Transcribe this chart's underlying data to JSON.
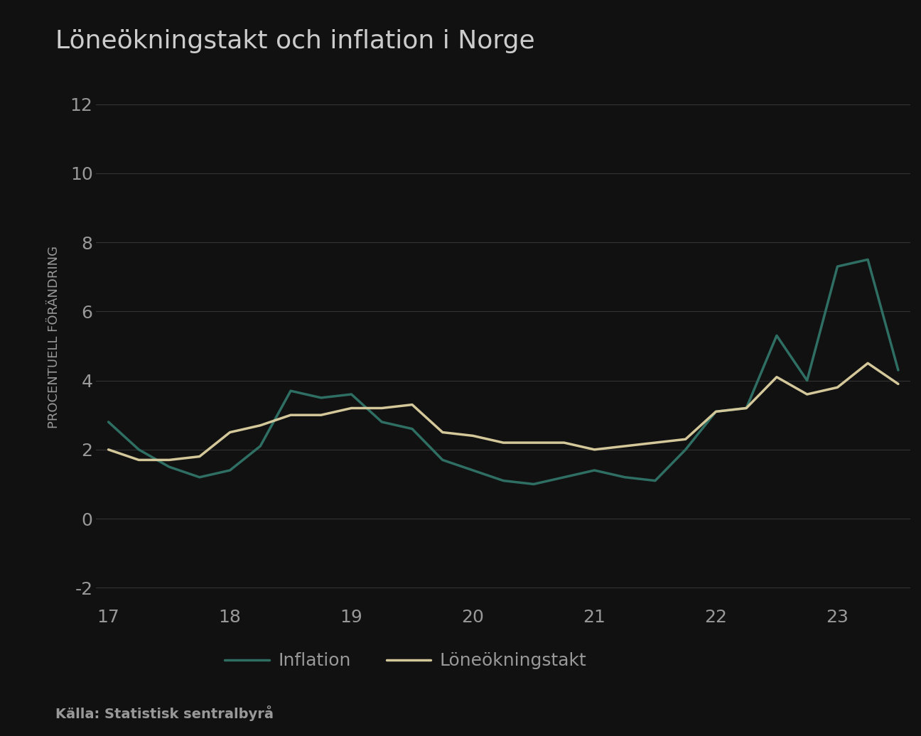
{
  "title": "Löneökningstakt och inflation i Norge",
  "ylabel": "PROCENTUELL FÖRÄNDRING",
  "source": "Källa: Statistisk sentralbyrå",
  "background_color": "#111111",
  "text_color": "#999999",
  "title_color": "#cccccc",
  "grid_color": "#333333",
  "x_labels": [
    "17",
    "18",
    "19",
    "20",
    "21",
    "22",
    "23"
  ],
  "x_ticks": [
    0,
    2,
    4,
    6,
    8,
    10,
    12
  ],
  "ylim": [
    -2.5,
    13
  ],
  "yticks": [
    -2,
    0,
    2,
    4,
    6,
    8,
    10,
    12
  ],
  "xlim": [
    -0.2,
    13.2
  ],
  "inflation_color": "#2e6e63",
  "loneokningstakt_color": "#d4c89a",
  "line_width": 2.5,
  "inflation_x": [
    0,
    0.5,
    1,
    1.5,
    2,
    2.5,
    3,
    3.5,
    4,
    4.5,
    5,
    5.5,
    6,
    6.5,
    7,
    7.5,
    8,
    8.5,
    9,
    9.5,
    10,
    10.5,
    11,
    11.5,
    12,
    12.5,
    13
  ],
  "inflation_y": [
    2.8,
    2.0,
    1.5,
    1.2,
    1.4,
    2.1,
    3.7,
    3.5,
    3.6,
    2.8,
    2.6,
    1.7,
    1.4,
    1.1,
    1.0,
    1.2,
    1.4,
    1.2,
    1.1,
    2.0,
    3.1,
    3.2,
    5.3,
    4.0,
    7.3,
    7.5,
    4.3
  ],
  "loneokningstakt_x": [
    0,
    0.5,
    1,
    1.5,
    2,
    2.5,
    3,
    3.5,
    4,
    4.5,
    5,
    5.5,
    6,
    6.5,
    7,
    7.5,
    8,
    8.5,
    9,
    9.5,
    10,
    10.5,
    11,
    11.5,
    12,
    12.5,
    13
  ],
  "loneokningstakt_y": [
    2.0,
    1.7,
    1.7,
    1.8,
    2.5,
    2.7,
    3.0,
    3.0,
    3.2,
    3.2,
    3.3,
    2.5,
    2.4,
    2.2,
    2.2,
    2.2,
    2.0,
    2.1,
    2.2,
    2.3,
    3.1,
    3.2,
    4.1,
    3.6,
    3.8,
    4.5,
    3.9
  ],
  "legend_inflation": "Inflation",
  "legend_loneokningstakt": "Löneökningstakt"
}
